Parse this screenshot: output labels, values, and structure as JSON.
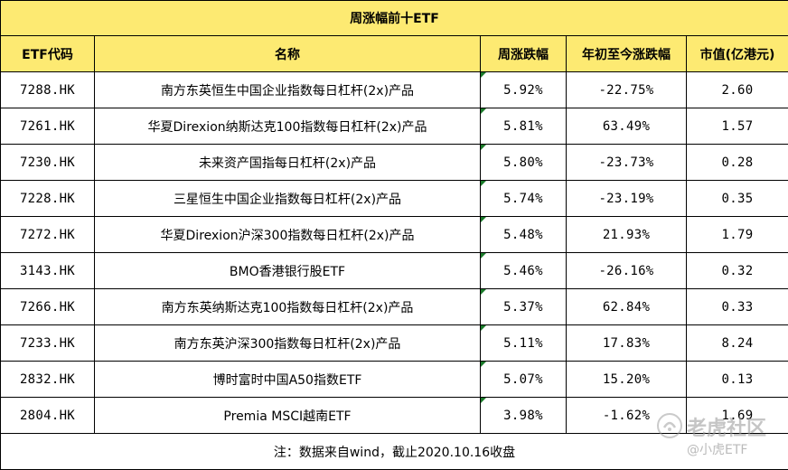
{
  "table": {
    "title": "周涨幅前十ETF",
    "headers": {
      "code": "ETF代码",
      "name": "名称",
      "weekly_change": "周涨跌幅",
      "ytd_change": "年初至今涨跌幅",
      "market_cap": "市值(亿港元)"
    },
    "rows": [
      {
        "code": "7288.HK",
        "name": "南方东英恒生中国企业指数每日杠杆(2x)产品",
        "weekly_change": "5.92%",
        "ytd_change": "-22.75%",
        "market_cap": "2.60"
      },
      {
        "code": "7261.HK",
        "name": "华夏Direxion纳斯达克100指数每日杠杆(2x)产品",
        "weekly_change": "5.81%",
        "ytd_change": "63.49%",
        "market_cap": "1.57"
      },
      {
        "code": "7230.HK",
        "name": "未来资产国指每日杠杆(2x)产品",
        "weekly_change": "5.80%",
        "ytd_change": "-23.73%",
        "market_cap": "0.28"
      },
      {
        "code": "7228.HK",
        "name": "三星恒生中国企业指数每日杠杆(2x)产品",
        "weekly_change": "5.74%",
        "ytd_change": "-23.19%",
        "market_cap": "0.35"
      },
      {
        "code": "7272.HK",
        "name": "华夏Direxion沪深300指数每日杠杆(2x)产品",
        "weekly_change": "5.48%",
        "ytd_change": "21.93%",
        "market_cap": "1.79"
      },
      {
        "code": "3143.HK",
        "name": "BMO香港银行股ETF",
        "weekly_change": "5.46%",
        "ytd_change": "-26.16%",
        "market_cap": "0.32"
      },
      {
        "code": "7266.HK",
        "name": "南方东英纳斯达克100指数每日杠杆(2x)产品",
        "weekly_change": "5.37%",
        "ytd_change": "62.84%",
        "market_cap": "0.33"
      },
      {
        "code": "7233.HK",
        "name": "南方东英沪深300指数每日杠杆(2x)产品",
        "weekly_change": "5.11%",
        "ytd_change": "17.83%",
        "market_cap": "8.24"
      },
      {
        "code": "2832.HK",
        "name": "博时富时中国A50指数ETF",
        "weekly_change": "5.07%",
        "ytd_change": "15.20%",
        "market_cap": "0.13"
      },
      {
        "code": "2804.HK",
        "name": "Premia MSCI越南ETF",
        "weekly_change": "3.98%",
        "ytd_change": "-1.62%",
        "market_cap": "1.69"
      }
    ],
    "note": "注：数据来自wind，截止2020.10.16收盘"
  },
  "watermark": {
    "brand": "老虎社区",
    "handle": "@小虎ETF"
  },
  "colors": {
    "header_fill": "#fdea72",
    "grid_line": "#000000",
    "comment_marker": "#1a7a2a"
  }
}
